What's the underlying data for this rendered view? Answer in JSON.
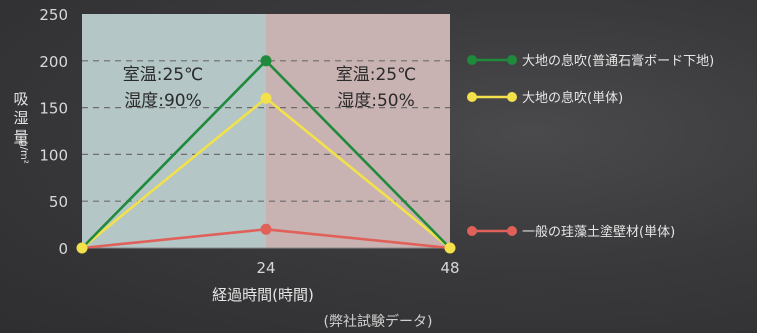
{
  "chart_data": {
    "type": "line",
    "x": [
      0,
      24,
      48
    ],
    "xticks": [
      "24",
      "48"
    ],
    "xlabel": "経過時間(時間)",
    "ylabel": "吸湿量",
    "yunit": "g/m²",
    "ylim": [
      0,
      250
    ],
    "yticks": [
      "0",
      "50",
      "100",
      "150",
      "200",
      "250"
    ],
    "grid": true,
    "series": [
      {
        "name": "大地の息吹(普通石膏ボード下地)",
        "values": [
          0,
          200,
          0
        ],
        "color": "#1f8a3c"
      },
      {
        "name": "大地の息吹(単体)",
        "values": [
          0,
          160,
          0
        ],
        "color": "#f2e14a"
      },
      {
        "name": "一般の珪藻土塗壁材(単体)",
        "values": [
          0,
          20,
          0
        ],
        "color": "#e0605a"
      }
    ],
    "regions": [
      {
        "from": 0,
        "to": 24,
        "color": "#b4c6c6",
        "lines": [
          "室温:25℃",
          "湿度:90%"
        ]
      },
      {
        "from": 24,
        "to": 48,
        "color": "#c9b3b2",
        "lines": [
          "室温:25℃",
          "湿度:50%"
        ]
      }
    ],
    "note": "(弊社試験データ)"
  }
}
